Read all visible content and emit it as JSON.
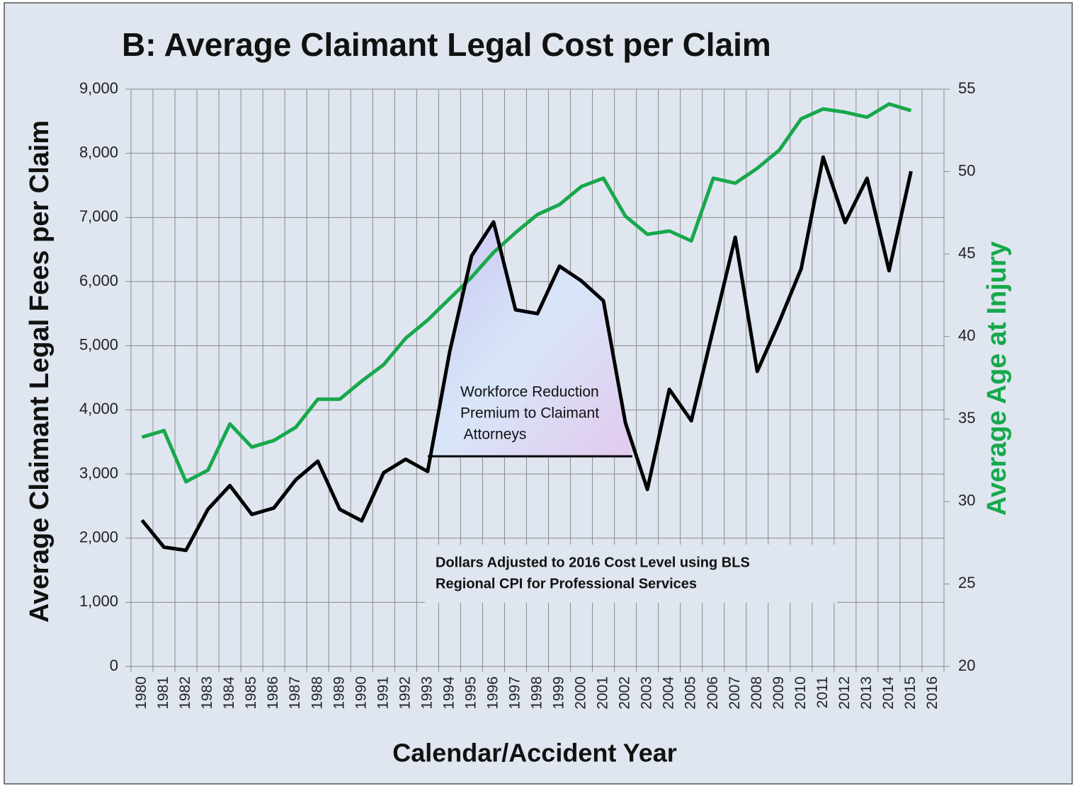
{
  "chart_data": {
    "type": "line",
    "title": "B: Average Claimant Legal Cost per Claim",
    "x_label": "Calendar/Accident Year",
    "y_label": "Average  Claimant Legal Fees per Claim",
    "y2_label": "Average Age at Injury",
    "categories": [
      "1980",
      "1981",
      "1982",
      "1983",
      "1984",
      "1985",
      "1986",
      "1987",
      "1988",
      "1989",
      "1990",
      "1991",
      "1992",
      "1993",
      "1994",
      "1995",
      "1996",
      "1997",
      "1998",
      "1999",
      "2000",
      "2001",
      "2002",
      "2003",
      "2004",
      "2005",
      "2006",
      "2007",
      "2008",
      "2009",
      "2010",
      "2011",
      "2012",
      "2013",
      "2014",
      "2015",
      "2016"
    ],
    "series": [
      {
        "name": "Average Claimant Legal Fees per Claim",
        "color": "#000000",
        "axis": "y",
        "values": [
          2280,
          1860,
          1810,
          2450,
          2820,
          2370,
          2470,
          2910,
          3200,
          2450,
          2270,
          3020,
          3230,
          3040,
          4900,
          6400,
          6930,
          5560,
          5500,
          6240,
          6010,
          5700,
          3800,
          2760,
          4320,
          3830,
          5260,
          6690,
          4600,
          5370,
          6200,
          7940,
          6920,
          7610,
          6170,
          7720,
          null
        ]
      },
      {
        "name": "Average Age at Injury",
        "color": "#17a84b",
        "axis": "y2",
        "values": [
          33.9,
          34.3,
          31.2,
          31.9,
          34.7,
          33.3,
          33.7,
          34.5,
          36.2,
          36.2,
          37.3,
          38.3,
          39.9,
          41.0,
          42.3,
          43.6,
          45.1,
          46.3,
          47.4,
          48.0,
          49.1,
          49.6,
          47.3,
          46.2,
          46.4,
          45.8,
          49.6,
          49.3,
          50.2,
          51.3,
          53.2,
          53.8,
          53.6,
          53.3,
          54.1,
          53.7,
          null
        ]
      }
    ],
    "ylim": [
      0,
      9000
    ],
    "yticks": [
      0,
      {
        "value": 1000,
        "label": "1,000"
      },
      {
        "value": 2000,
        "label": "2,000"
      },
      {
        "value": 3000,
        "label": "3,000"
      },
      {
        "value": 4000,
        "label": "4,000"
      },
      {
        "value": 5000,
        "label": "5,000"
      },
      {
        "value": 6000,
        "label": "6,000"
      },
      {
        "value": 7000,
        "label": "7,000"
      },
      {
        "value": 8000,
        "label": "8,000"
      },
      {
        "value": 9000,
        "label": "9,000"
      }
    ],
    "y2lim": [
      20,
      55
    ],
    "y2ticks": [
      20,
      25,
      30,
      35,
      40,
      45,
      50,
      55
    ],
    "grid": true,
    "annotations": [
      [
        "Workforce Reduction",
        "Premium to Claimant",
        " Attorneys"
      ],
      [
        "Dollars Adjusted to 2016 Cost Level using BLS",
        "Regional CPI for Professional Services"
      ]
    ]
  }
}
